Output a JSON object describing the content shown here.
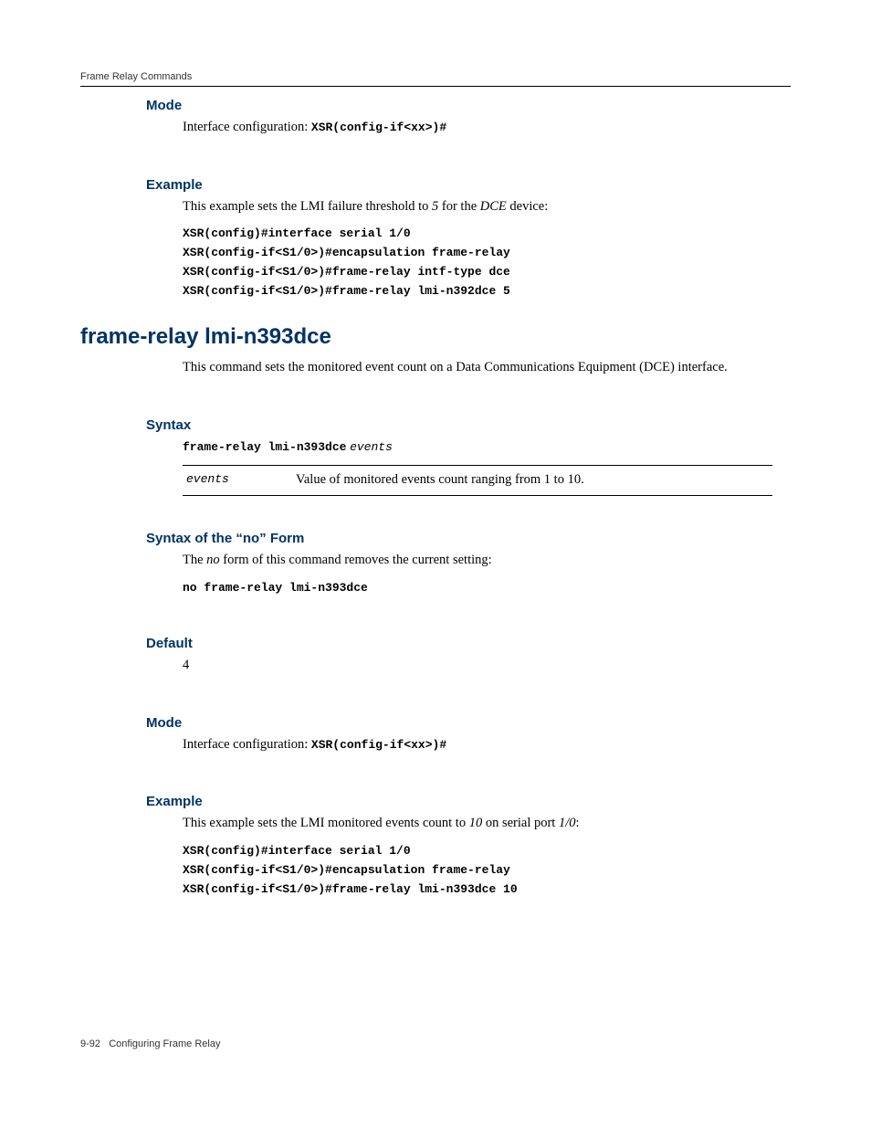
{
  "header": {
    "text": "Frame Relay Commands"
  },
  "sec1": {
    "mode": {
      "heading": "Mode",
      "prefix": "Interface configuration: ",
      "code": "XSR(config-if<xx>)#"
    },
    "example": {
      "heading": "Example",
      "intro_a": "This example sets the LMI failure threshold to ",
      "intro_b": "5",
      "intro_c": " for the ",
      "intro_d": "DCE",
      "intro_e": " device:",
      "code": "XSR(config)#interface serial 1/0\nXSR(config-if<S1/0>)#encapsulation frame-relay\nXSR(config-if<S1/0>)#frame-relay intf-type dce\nXSR(config-if<S1/0>)#frame-relay lmi-n392dce 5"
    }
  },
  "cmd": {
    "title": "frame-relay lmi-n393dce",
    "desc": "This command sets the monitored event count on a Data Communications Equipment (DCE) interface.",
    "syntax": {
      "heading": "Syntax",
      "cmd": "frame-relay lmi-n393dce",
      "arg": "events",
      "param_name": "events",
      "param_desc": "Value of monitored events count ranging from 1 to 10."
    },
    "noform": {
      "heading": "Syntax of the “no” Form",
      "intro_a": "The ",
      "intro_b": "no",
      "intro_c": " form of this command removes the current setting:",
      "code": "no frame-relay lmi-n393dce"
    },
    "default": {
      "heading": "Default",
      "value": "4"
    },
    "mode": {
      "heading": "Mode",
      "prefix": "Interface configuration: ",
      "code": "XSR(config-if<xx>)#"
    },
    "example": {
      "heading": "Example",
      "intro_a": "This example sets the LMI monitored events count to ",
      "intro_b": "10",
      "intro_c": " on serial port ",
      "intro_d": "1/0",
      "intro_e": ":",
      "code": "XSR(config)#interface serial 1/0\nXSR(config-if<S1/0>)#encapsulation frame-relay\nXSR(config-if<S1/0>)#frame-relay lmi-n393dce 10"
    }
  },
  "footer": {
    "page": "9-92",
    "label": "Configuring Frame Relay"
  }
}
